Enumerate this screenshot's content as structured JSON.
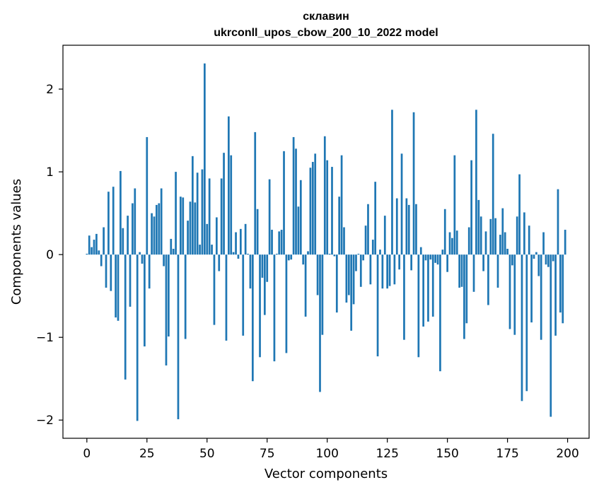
{
  "chart_data": {
    "type": "bar",
    "title": [
      "склавин",
      "ukrconll_upos_cbow_200_10_2022 model"
    ],
    "xlabel": "Vector components",
    "ylabel": "Components values",
    "xlim": [
      -9.95,
      208.95
    ],
    "ylim": [
      -2.22,
      2.53
    ],
    "xticks": [
      0,
      25,
      50,
      75,
      100,
      125,
      150,
      175,
      200
    ],
    "xtick_labels": [
      "0",
      "25",
      "50",
      "75",
      "100",
      "125",
      "150",
      "175",
      "200"
    ],
    "yticks": [
      -2,
      -1,
      0,
      1,
      2
    ],
    "ytick_labels": [
      "−2",
      "−1",
      "0",
      "1",
      "2"
    ],
    "grid": false,
    "bar_color": "#1f77b4",
    "x": [
      0,
      1,
      2,
      3,
      4,
      5,
      6,
      7,
      8,
      9,
      10,
      11,
      12,
      13,
      14,
      15,
      16,
      17,
      18,
      19,
      20,
      21,
      22,
      23,
      24,
      25,
      26,
      27,
      28,
      29,
      30,
      31,
      32,
      33,
      34,
      35,
      36,
      37,
      38,
      39,
      40,
      41,
      42,
      43,
      44,
      45,
      46,
      47,
      48,
      49,
      50,
      51,
      52,
      53,
      54,
      55,
      56,
      57,
      58,
      59,
      60,
      61,
      62,
      63,
      64,
      65,
      66,
      67,
      68,
      69,
      70,
      71,
      72,
      73,
      74,
      75,
      76,
      77,
      78,
      79,
      80,
      81,
      82,
      83,
      84,
      85,
      86,
      87,
      88,
      89,
      90,
      91,
      92,
      93,
      94,
      95,
      96,
      97,
      98,
      99,
      100,
      101,
      102,
      103,
      104,
      105,
      106,
      107,
      108,
      109,
      110,
      111,
      112,
      113,
      114,
      115,
      116,
      117,
      118,
      119,
      120,
      121,
      122,
      123,
      124,
      125,
      126,
      127,
      128,
      129,
      130,
      131,
      132,
      133,
      134,
      135,
      136,
      137,
      138,
      139,
      140,
      141,
      142,
      143,
      144,
      145,
      146,
      147,
      148,
      149,
      150,
      151,
      152,
      153,
      154,
      155,
      156,
      157,
      158,
      159,
      160,
      161,
      162,
      163,
      164,
      165,
      166,
      167,
      168,
      169,
      170,
      171,
      172,
      173,
      174,
      175,
      176,
      177,
      178,
      179,
      180,
      181,
      182,
      183,
      184,
      185,
      186,
      187,
      188,
      189,
      190,
      191,
      192,
      193,
      194,
      195,
      196,
      197,
      198,
      199
    ],
    "values": [
      0.01,
      0.23,
      0.09,
      0.18,
      0.25,
      0.05,
      -0.14,
      0.33,
      -0.4,
      0.76,
      -0.44,
      0.82,
      -0.76,
      -0.8,
      1.01,
      0.32,
      -1.51,
      0.47,
      -0.63,
      0.62,
      0.8,
      -2.01,
      0.03,
      -0.11,
      -1.11,
      1.42,
      -0.41,
      0.5,
      0.46,
      0.6,
      0.62,
      0.8,
      -0.14,
      -1.34,
      -0.99,
      0.19,
      0.07,
      1.0,
      -1.99,
      0.7,
      0.69,
      -1.02,
      0.41,
      0.64,
      1.19,
      0.63,
      0.99,
      0.12,
      1.03,
      2.31,
      0.37,
      0.92,
      0.12,
      -0.85,
      0.45,
      -0.2,
      0.92,
      1.23,
      -1.04,
      1.67,
      1.2,
      0.03,
      0.27,
      -0.05,
      0.31,
      -0.98,
      0.37,
      0.01,
      -0.41,
      -1.53,
      1.48,
      0.55,
      -1.24,
      -0.28,
      -0.73,
      -0.33,
      0.91,
      0.3,
      -1.29,
      0.01,
      0.28,
      0.3,
      1.25,
      -1.19,
      -0.07,
      -0.06,
      1.42,
      1.28,
      0.58,
      0.9,
      -0.12,
      -0.75,
      0.04,
      1.05,
      1.12,
      1.22,
      -0.49,
      -1.66,
      -0.97,
      1.43,
      1.14,
      0.01,
      1.06,
      -0.02,
      -0.7,
      0.7,
      1.2,
      0.33,
      -0.58,
      -0.49,
      -0.92,
      -0.6,
      -0.2,
      0.01,
      -0.39,
      -0.07,
      0.35,
      0.61,
      -0.36,
      0.18,
      0.88,
      -1.23,
      0.06,
      -0.41,
      0.47,
      -0.41,
      -0.38,
      1.75,
      -0.36,
      0.68,
      -0.18,
      1.22,
      -1.03,
      0.68,
      0.6,
      -0.19,
      1.72,
      0.61,
      -1.24,
      0.09,
      -0.87,
      -0.07,
      -0.81,
      -0.06,
      -0.75,
      -0.1,
      -0.12,
      -1.41,
      0.06,
      0.55,
      -0.21,
      0.27,
      0.2,
      1.2,
      0.29,
      -0.4,
      -0.39,
      -1.02,
      -0.83,
      0.33,
      1.14,
      -0.45,
      1.75,
      0.66,
      0.46,
      -0.2,
      0.28,
      -0.61,
      0.43,
      1.46,
      0.44,
      -0.4,
      0.24,
      0.56,
      0.27,
      0.07,
      -0.9,
      -0.13,
      -0.97,
      0.46,
      0.97,
      -1.77,
      0.51,
      -1.65,
      0.35,
      -0.82,
      -0.05,
      0.03,
      -0.26,
      -1.03,
      0.27,
      -0.12,
      -0.15,
      -1.96,
      -0.08,
      -0.98,
      0.79,
      -0.7,
      -0.83,
      0.3
    ]
  }
}
